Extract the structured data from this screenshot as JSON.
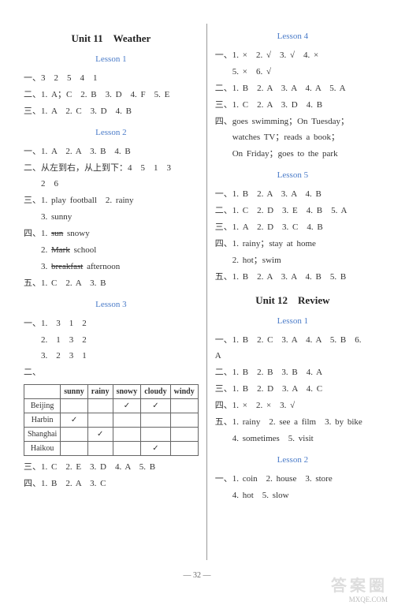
{
  "left": {
    "unit": "Unit 11　Weather",
    "lesson1": {
      "title": "Lesson 1",
      "l1": "一、3　2　5　4　1",
      "l2": "二、1. A；C　2. B　3. D　4. F　5. E",
      "l3": "三、1. A　2. C　3. D　4. B"
    },
    "lesson2": {
      "title": "Lesson 2",
      "l1": "一、1. A　2. A　3. B　4. B",
      "l2": "二、从左到右，从上到下：4　5　1　3",
      "l2b": "　　2　6",
      "l3": "三、1. play football　2. rainy",
      "l3b": "　　3. sunny",
      "l4a": "四、1. ",
      "l4a_s": "sun",
      "l4a_t": " snowy",
      "l4b": "　　2. ",
      "l4b_s": "Mark",
      "l4b_t": " school",
      "l4c": "　　3. ",
      "l4c_s": "breakfast",
      "l4c_t": " afternoon",
      "l5": "五、1. C　2. A　3. B"
    },
    "lesson3": {
      "title": "Lesson 3",
      "l1": "一、1.　3　1　2",
      "l1b": "　　2.　1　3　2",
      "l1c": "　　3.　2　3　1",
      "l2": "二、",
      "l3": "三、1. C　2. E　3. D　4. A　5. B",
      "l4": "四、1. B　2. A　3. C"
    },
    "table": {
      "h1": "sunny",
      "h2": "rainy",
      "h3": "snowy",
      "h4": "cloudy",
      "h5": "windy",
      "r1": "Beijing",
      "r2": "Harbin",
      "r3": "Shanghai",
      "r4": "Haikou"
    }
  },
  "right": {
    "lesson4": {
      "title": "Lesson 4",
      "l1": "一、1. ×　2. √　3. √　4. ×",
      "l1b": "　　5. ×　6. √",
      "l2": "二、1. B　2. A　3. A　4. A　5. A",
      "l3": "三、1. C　2. A　3. D　4. B",
      "l4": "四、goes swimming；On Tuesday；",
      "l4b": "　　watches TV；reads a book；",
      "l4c": "　　On Friday；goes to the park"
    },
    "lesson5": {
      "title": "Lesson 5",
      "l1": "一、1. B　2. A　3. A　4. B",
      "l2": "二、1. C　2. D　3. E　4. B　5. A",
      "l3": "三、1. A　2. D　3. C　4. B",
      "l4": "四、1. rainy；stay at home",
      "l4b": "　　2. hot；swim",
      "l5": "五、1. B　2. A　3. A　4. B　5. B"
    },
    "unit": "Unit 12　Review",
    "lesson1": {
      "title": "Lesson 1",
      "l1": "一、1. B　2. C　3. A　4. A　5. B　6. A",
      "l2": "二、1. B　2. B　3. B　4. A",
      "l3": "三、1. B　2. D　3. A　4. C",
      "l4": "四、1. ×　2. ×　3. √",
      "l5": "五、1. rainy　2. see a film　3. by bike",
      "l5b": "　　4. sometimes　5. visit"
    },
    "lesson2": {
      "title": "Lesson 2",
      "l1": "一、1. coin　2. house　3. store",
      "l1b": "　　4. hot　5. slow"
    }
  },
  "pagenum": "— 32 —",
  "watermark": {
    "top": "答案圈",
    "url": "MXQE.COM"
  }
}
